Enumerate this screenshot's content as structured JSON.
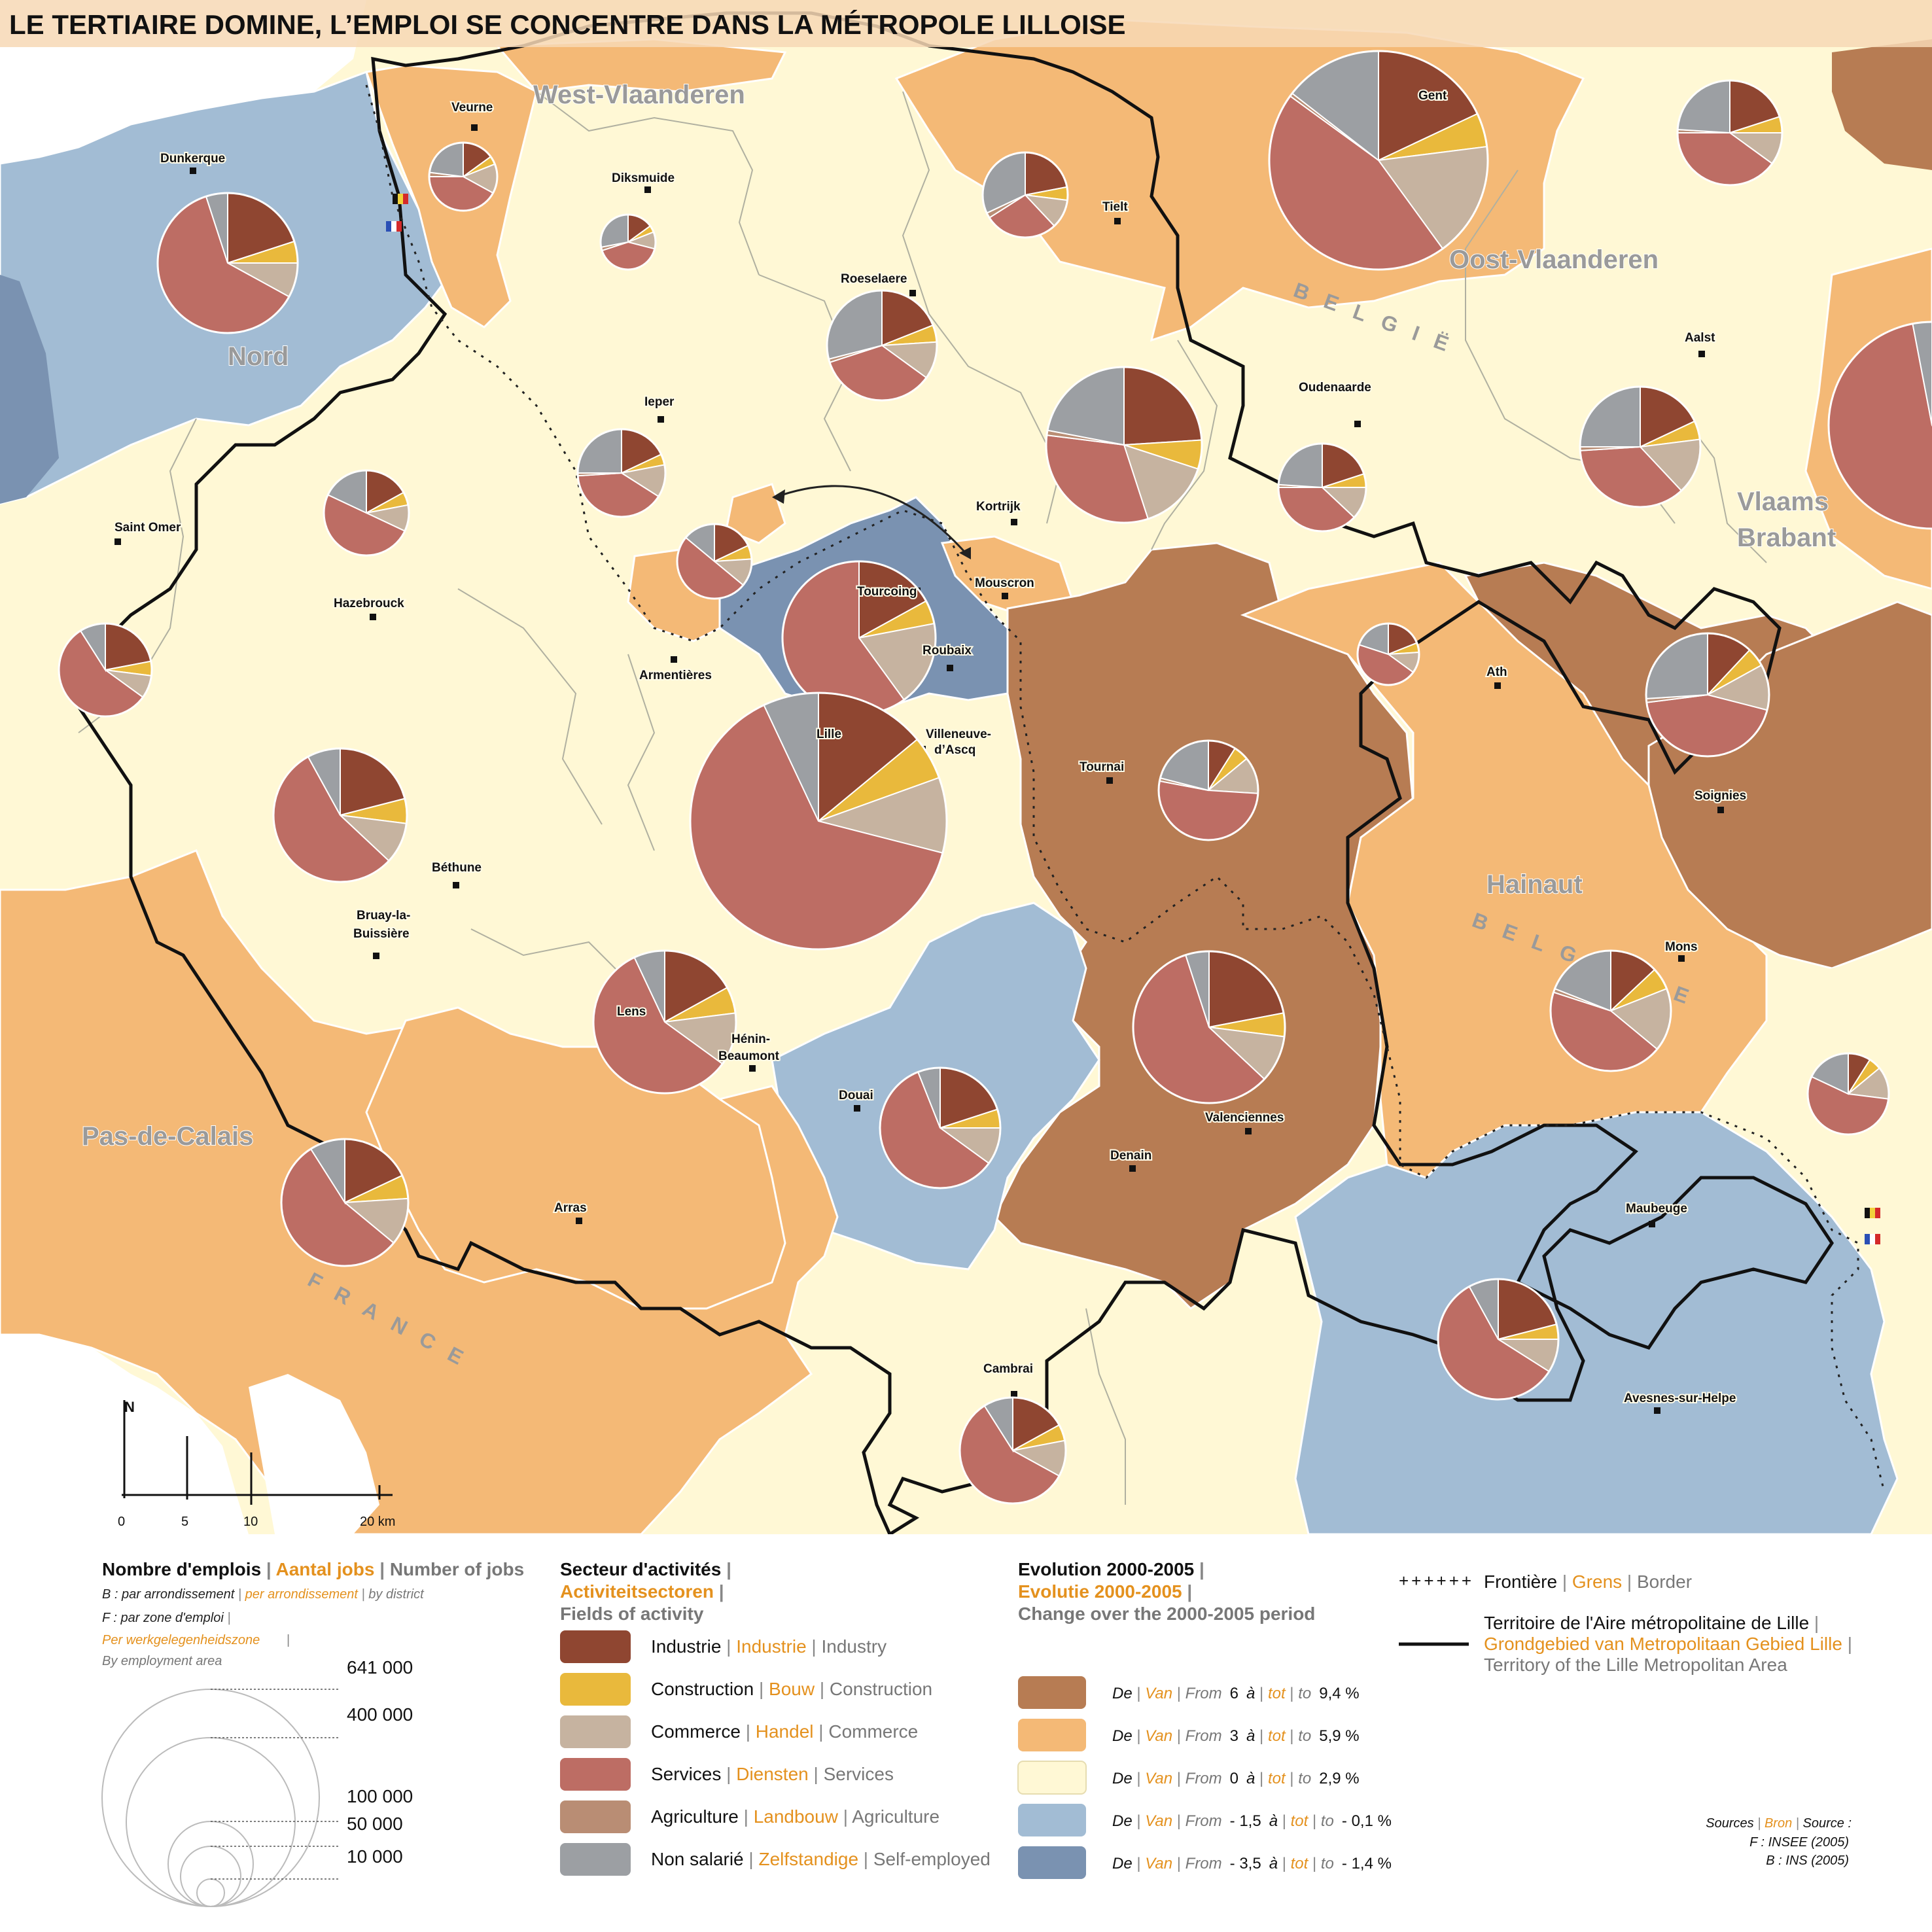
{
  "title": "LE TERTIAIRE DOMINE, L’EMPLOI SE CONCENTRE DANS LA MÉTROPOLE LILLOISE",
  "colors": {
    "industry": "#8f4631",
    "construction": "#e9b93c",
    "commerce": "#c6b3a0",
    "services": "#bd6d64",
    "agriculture": "#b98d74",
    "self_employed": "#9c9fa3",
    "evol_6_9": "#b77c53",
    "evol_3_5": "#f4b976",
    "evol_0_2": "#fff8d5",
    "evol_m15_01": "#a2bcd4",
    "evol_m35_14": "#7a92b1",
    "sea": "#ffffff",
    "accent_nl": "#e4911e"
  },
  "region_labels": {
    "west_vlaanderen": "West-Vlaanderen",
    "oost_vlaanderen": "Oost-Vlaanderen",
    "vlaams_brabant_1": "Vlaams",
    "vlaams_brabant_2": "Brabant",
    "nord": "Nord",
    "hainaut": "Hainaut",
    "pas_de_calais": "Pas-de-Calais",
    "belgie": "BELGIË",
    "belgique": "BELGIQUE",
    "france": "FRANCE"
  },
  "cities": [
    {
      "name": "Dunkerque"
    },
    {
      "name": "Veurne"
    },
    {
      "name": "Diksmuide"
    },
    {
      "name": "Gent"
    },
    {
      "name": "Tielt"
    },
    {
      "name": "Roeselaere"
    },
    {
      "name": "Ieper"
    },
    {
      "name": "Kortrijk"
    },
    {
      "name": "Oudenaarde"
    },
    {
      "name": "Aalst"
    },
    {
      "name": "Saint Omer"
    },
    {
      "name": "Hazebrouck"
    },
    {
      "name": "Tourcoing"
    },
    {
      "name": "Roubaix"
    },
    {
      "name": "Mouscron"
    },
    {
      "name": "Armentières"
    },
    {
      "name": "Lille"
    },
    {
      "name": "Villeneuve-d’Ascq"
    },
    {
      "name": "Tournai"
    },
    {
      "name": "Ath"
    },
    {
      "name": "Soignies"
    },
    {
      "name": "Béthune"
    },
    {
      "name": "Bruay-la-Buissière"
    },
    {
      "name": "Lens"
    },
    {
      "name": "Hénin-Beaumont"
    },
    {
      "name": "Mons"
    },
    {
      "name": "Douai"
    },
    {
      "name": "Valenciennes"
    },
    {
      "name": "Denain"
    },
    {
      "name": "Arras"
    },
    {
      "name": "Maubeuge"
    },
    {
      "name": "Cambrai"
    },
    {
      "name": "Avesnes-sur-Helpe"
    }
  ],
  "pies": [
    {
      "id": "dunkerque",
      "shares": [
        20,
        5,
        8,
        62,
        0,
        5
      ]
    },
    {
      "id": "veurne",
      "shares": [
        15,
        4,
        14,
        42,
        2,
        23
      ]
    },
    {
      "id": "diksmuide",
      "shares": [
        15,
        4,
        10,
        41,
        2,
        28
      ]
    },
    {
      "id": "tielt",
      "shares": [
        22,
        5,
        11,
        28,
        2,
        32
      ]
    },
    {
      "id": "gent",
      "shares": [
        18,
        5,
        17,
        45,
        0.5,
        14.5
      ]
    },
    {
      "id": "oost-ne",
      "shares": [
        20,
        5,
        10,
        40,
        1,
        24
      ]
    },
    {
      "id": "roeselaere",
      "shares": [
        19,
        5,
        11,
        35,
        1,
        29
      ]
    },
    {
      "id": "ieper",
      "shares": [
        18,
        4,
        12,
        40,
        1,
        25
      ]
    },
    {
      "id": "kortrijk",
      "shares": [
        24,
        6,
        15,
        32,
        1,
        22
      ]
    },
    {
      "id": "oudenaarde",
      "shares": [
        20,
        5,
        12,
        38,
        1,
        24
      ]
    },
    {
      "id": "aalst",
      "shares": [
        18,
        5,
        15,
        36,
        1,
        25
      ]
    },
    {
      "id": "brussels-edge",
      "shares": [
        14,
        6,
        22,
        55,
        0,
        3
      ]
    },
    {
      "id": "saint-omer",
      "shares": [
        17,
        5,
        10,
        50,
        0,
        18
      ]
    },
    {
      "id": "west-edge",
      "shares": [
        22,
        5,
        8,
        56,
        0,
        9
      ]
    },
    {
      "id": "ypres-south",
      "shares": [
        18,
        6,
        12,
        50,
        0,
        14
      ]
    },
    {
      "id": "mouscron-west",
      "shares": [
        19,
        5,
        11,
        45,
        0,
        20
      ]
    },
    {
      "id": "roubaix-tourcoing",
      "shares": [
        17,
        5,
        18,
        60,
        0,
        0
      ]
    },
    {
      "id": "lille",
      "shares": [
        14,
        5.5,
        9.5,
        64,
        0,
        7
      ]
    },
    {
      "id": "bethune",
      "shares": [
        21,
        6,
        10,
        55,
        0,
        8
      ]
    },
    {
      "id": "lens",
      "shares": [
        17,
        6,
        12,
        58,
        0,
        7
      ]
    },
    {
      "id": "tournai",
      "shares": [
        9,
        5,
        12,
        52,
        1,
        21
      ]
    },
    {
      "id": "ath",
      "shares": [
        12,
        5,
        12,
        44,
        1,
        26
      ]
    },
    {
      "id": "soignies",
      "shares": [
        13,
        6,
        17,
        44,
        1,
        19
      ]
    },
    {
      "id": "mons",
      "shares": [
        9,
        5,
        13,
        55,
        0,
        18
      ]
    },
    {
      "id": "valenciennes",
      "shares": [
        22,
        5,
        10,
        58,
        0,
        5
      ]
    },
    {
      "id": "douai",
      "shares": [
        20,
        5,
        10,
        59,
        0,
        6
      ]
    },
    {
      "id": "arras",
      "shares": [
        18,
        6,
        12,
        55,
        0,
        9
      ]
    },
    {
      "id": "cambrai",
      "shares": [
        17,
        5,
        11,
        58,
        0,
        9
      ]
    },
    {
      "id": "maubeuge",
      "shares": [
        21,
        4,
        9,
        58,
        0,
        8
      ]
    },
    {
      "id": "east-edge",
      "shares": [
        11,
        5,
        13,
        44,
        1,
        26
      ]
    }
  ],
  "scale": {
    "north": "N",
    "ticks": [
      "0",
      "5",
      "10",
      "20 km"
    ]
  },
  "legend": {
    "size": {
      "fr": "Nombre d'emplois",
      "nl": "Aantal jobs",
      "en": "Number of jobs",
      "b_fr": "B : par arrondissement",
      "b_nl": "per arrondissement",
      "b_en": "by district",
      "f_fr": "F : par zone d'emploi",
      "f_nl": "Per werkgelegenheidszone",
      "f_en": "By employment area",
      "values": [
        "641 000",
        "400 000",
        "100 000",
        "50 000",
        "10 000"
      ]
    },
    "sectors": {
      "fr": "Secteur d'activités",
      "nl": "Activiteitsectoren",
      "en": "Fields of activity",
      "items": [
        {
          "fr": "Industrie",
          "nl": "Industrie",
          "en": "Industry"
        },
        {
          "fr": "Construction",
          "nl": "Bouw",
          "en": "Construction"
        },
        {
          "fr": "Commerce",
          "nl": "Handel",
          "en": "Commerce"
        },
        {
          "fr": "Services",
          "nl": "Diensten",
          "en": "Services"
        },
        {
          "fr": "Agriculture",
          "nl": "Landbouw",
          "en": "Agriculture"
        },
        {
          "fr": "Non salarié",
          "nl": "Zelfstandige",
          "en": "Self-employed"
        }
      ]
    },
    "evolution": {
      "fr": "Evolution 2000-2005",
      "nl": "Evolutie 2000-2005",
      "en": "Change over the 2000-2005 period",
      "w_de": "De",
      "w_van": "Van",
      "w_from": "From",
      "w_a": "à",
      "w_tot": "tot",
      "w_to": "to",
      "ranges": [
        {
          "from": "6",
          "to": "9,4 %"
        },
        {
          "from": "3",
          "to": "5,9 %"
        },
        {
          "from": "0",
          "to": "2,9 %"
        },
        {
          "from": "- 1,5",
          "to": "- 0,1 %"
        },
        {
          "from": "- 3,5",
          "to": "- 1,4 %"
        }
      ]
    },
    "border": {
      "fr": "Frontière",
      "nl": "Grens",
      "en": "Border"
    },
    "territory": {
      "fr": "Territoire de l'Aire métropolitaine de Lille",
      "nl": "Grondgebied van Metropolitaan Gebied Lille",
      "en": "Territory of the Lille Metropolitan Area"
    },
    "sources": {
      "fr": "Sources",
      "nl": "Bron",
      "en": "Source :",
      "f": "F : INSEE (2005)",
      "b": "B : INS (2005)"
    }
  }
}
